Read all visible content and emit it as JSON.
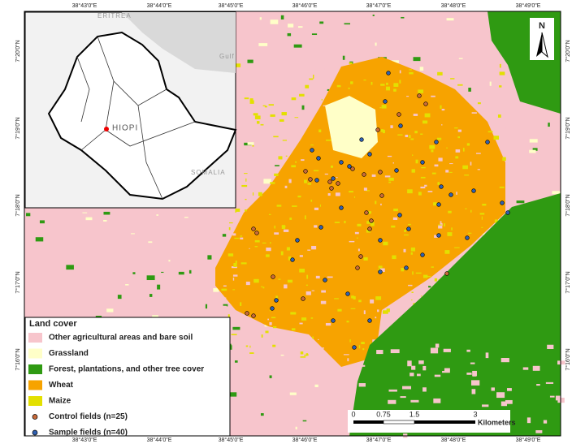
{
  "map": {
    "longitude_labels": [
      "38°43'0\"E",
      "38°44'0\"E",
      "38°45'0\"E",
      "38°46'0\"E",
      "38°47'0\"E",
      "38°48'0\"E",
      "38°49'0\"E"
    ],
    "latitude_labels": [
      "7°20'0\"N",
      "7°19'0\"N",
      "7°18'0\"N",
      "7°17'0\"N",
      "7°16'0\"N"
    ],
    "north_label": "N",
    "inset": {
      "labels": [
        "ERITREA",
        "Gulf",
        "HIOPI",
        "SOMALIA"
      ]
    },
    "legend": {
      "title": "Land cover",
      "items": [
        {
          "label": "Other agricultural areas and bare soil",
          "color": "#f7c5cc"
        },
        {
          "label": "Grassland",
          "color": "#ffffc8"
        },
        {
          "label": "Forest, plantations, and other tree cover",
          "color": "#2f9a12"
        },
        {
          "label": "Wheat",
          "color": "#f7a300"
        },
        {
          "label": "Maize",
          "color": "#e3e000"
        },
        {
          "label": "Control fields (n=25)",
          "color": "#c76a3a"
        },
        {
          "label": "Sample fields (n=40)",
          "color": "#2f5fb0"
        }
      ]
    },
    "scale_bar": {
      "ticks": [
        "0",
        "0.75",
        "1.5",
        "3"
      ],
      "unit": "Kilometers"
    }
  }
}
